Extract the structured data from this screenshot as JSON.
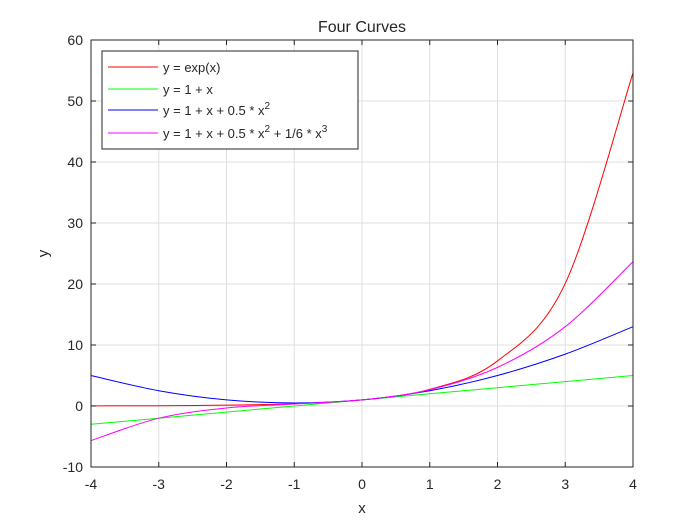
{
  "chart_data": {
    "type": "line",
    "title": "Four Curves",
    "xlabel": "x",
    "ylabel": "y",
    "xlim": [
      -4,
      4
    ],
    "ylim": [
      -10,
      60
    ],
    "xticks": [
      "-4",
      "-3",
      "-2",
      "-1",
      "0",
      "1",
      "2",
      "3",
      "4"
    ],
    "yticks": [
      "-10",
      "0",
      "10",
      "20",
      "30",
      "40",
      "50",
      "60"
    ],
    "grid": true,
    "legend_position": "top-left",
    "x": [
      -4,
      -3,
      -2,
      -1,
      0,
      1,
      2,
      3,
      4
    ],
    "series": [
      {
        "name": "y = exp(x)",
        "name_parts": {
          "base": "y = exp(x)"
        },
        "color": "#ff0000",
        "values": [
          0.02,
          0.05,
          0.14,
          0.37,
          1,
          2.72,
          7.39,
          20.09,
          54.6
        ]
      },
      {
        "name": "y = 1 + x",
        "name_parts": {
          "base": "y = 1 + x"
        },
        "color": "#00ff00",
        "values": [
          -3,
          -2,
          -1,
          0,
          1,
          2,
          3,
          4,
          5
        ]
      },
      {
        "name": "y = 1 + x + 0.5 * x^2",
        "name_parts": {
          "base": "y = 1 + x + 0.5 * x",
          "sup1": "2"
        },
        "color": "#0000ff",
        "values": [
          5,
          2.5,
          1,
          0.5,
          1,
          2.5,
          5,
          8.5,
          13
        ]
      },
      {
        "name": "y = 1 + x + 0.5 * x^2 + 1/6 * x^3",
        "name_parts": {
          "base": "y = 1 + x + 0.5 * x",
          "sup1": "2",
          "mid": " + 1/6 * x",
          "sup2": "3"
        },
        "color": "#ff00ff",
        "values": [
          -5.67,
          -2,
          -0.33,
          0.33,
          1,
          2.67,
          6.33,
          13,
          23.67
        ]
      }
    ]
  }
}
